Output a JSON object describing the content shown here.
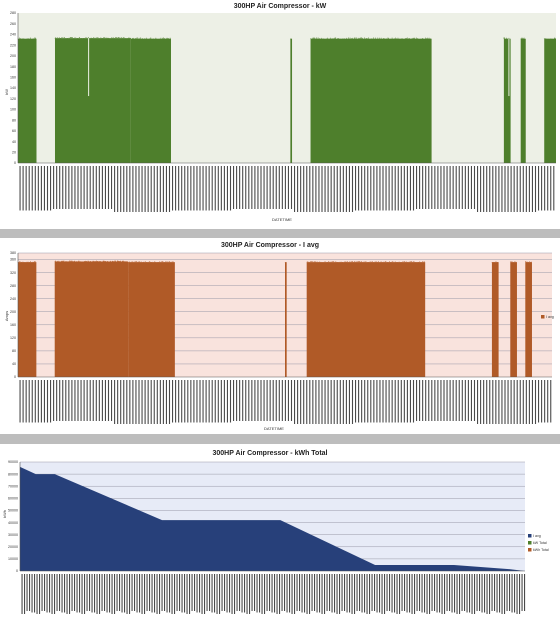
{
  "chart_data": [
    {
      "type": "bar",
      "title": "300HP Air Compressor - kW",
      "xlabel": "DATETIME",
      "ylabel": "kW",
      "ylim": [
        0,
        280
      ],
      "yticks": [
        0,
        20,
        40,
        60,
        80,
        100,
        120,
        140,
        160,
        180,
        200,
        220,
        240,
        260,
        280
      ],
      "color": "#4e7f2c",
      "plot_background": "#edf0e6",
      "grid": false,
      "legend": [],
      "x_count": 320,
      "segments": [
        {
          "from": 0,
          "to": 11,
          "value": 232,
          "dips": []
        },
        {
          "from": 22,
          "to": 67,
          "value": 233,
          "dips": [
            {
              "at": 20,
              "value": 125
            }
          ]
        },
        {
          "from": 67,
          "to": 91,
          "value": 232,
          "dips": []
        },
        {
          "from": 162,
          "to": 163,
          "value": 232,
          "dips": []
        },
        {
          "from": 174,
          "to": 246,
          "value": 232,
          "dips": []
        },
        {
          "from": 289,
          "to": 293,
          "value": 232,
          "dips": [
            {
              "at": 3,
              "value": 125
            }
          ]
        },
        {
          "from": 299,
          "to": 302,
          "value": 232,
          "dips": []
        },
        {
          "from": 313,
          "to": 320,
          "value": 232,
          "dips": []
        }
      ]
    },
    {
      "type": "bar",
      "title": "300HP Air Compressor - I avg",
      "xlabel": "DATETIME",
      "ylabel": "Amps",
      "ylim": [
        0,
        380
      ],
      "yticks": [
        0,
        40,
        80,
        120,
        160,
        200,
        240,
        280,
        320,
        360,
        380
      ],
      "color": "#b05a27",
      "plot_background": "#f9e3dd",
      "grid": true,
      "legend": [
        "I avg"
      ],
      "legend_position": "right",
      "x_count": 320,
      "segments": [
        {
          "from": 0,
          "to": 11,
          "value": 352,
          "dips": []
        },
        {
          "from": 22,
          "to": 66,
          "value": 354,
          "dips": []
        },
        {
          "from": 66,
          "to": 94,
          "value": 352,
          "dips": []
        },
        {
          "from": 160,
          "to": 161,
          "value": 352,
          "dips": []
        },
        {
          "from": 173,
          "to": 244,
          "value": 352,
          "dips": []
        },
        {
          "from": 284,
          "to": 288,
          "value": 352,
          "dips": []
        },
        {
          "from": 295,
          "to": 299,
          "value": 352,
          "dips": []
        },
        {
          "from": 304,
          "to": 308,
          "value": 352,
          "dips": []
        }
      ]
    },
    {
      "type": "area",
      "title": "300HP Air Compressor - kWh Total",
      "xlabel": "",
      "ylabel": "kWh",
      "ylim": [
        0,
        90000
      ],
      "yticks": [
        0,
        10000,
        20000,
        30000,
        40000,
        50000,
        60000,
        70000,
        80000,
        90000
      ],
      "color": "#27407a",
      "plot_background": "#e7ebf7",
      "grid": true,
      "legend": [
        "I avg",
        "kW Total",
        "kWh Total"
      ],
      "legend_position": "right",
      "x_count": 320,
      "points": [
        [
          0,
          86000
        ],
        [
          10,
          80000
        ],
        [
          22,
          80000
        ],
        [
          90,
          42000
        ],
        [
          165,
          42000
        ],
        [
          225,
          5000
        ],
        [
          275,
          5000
        ],
        [
          310,
          1500
        ],
        [
          320,
          0
        ]
      ]
    }
  ]
}
